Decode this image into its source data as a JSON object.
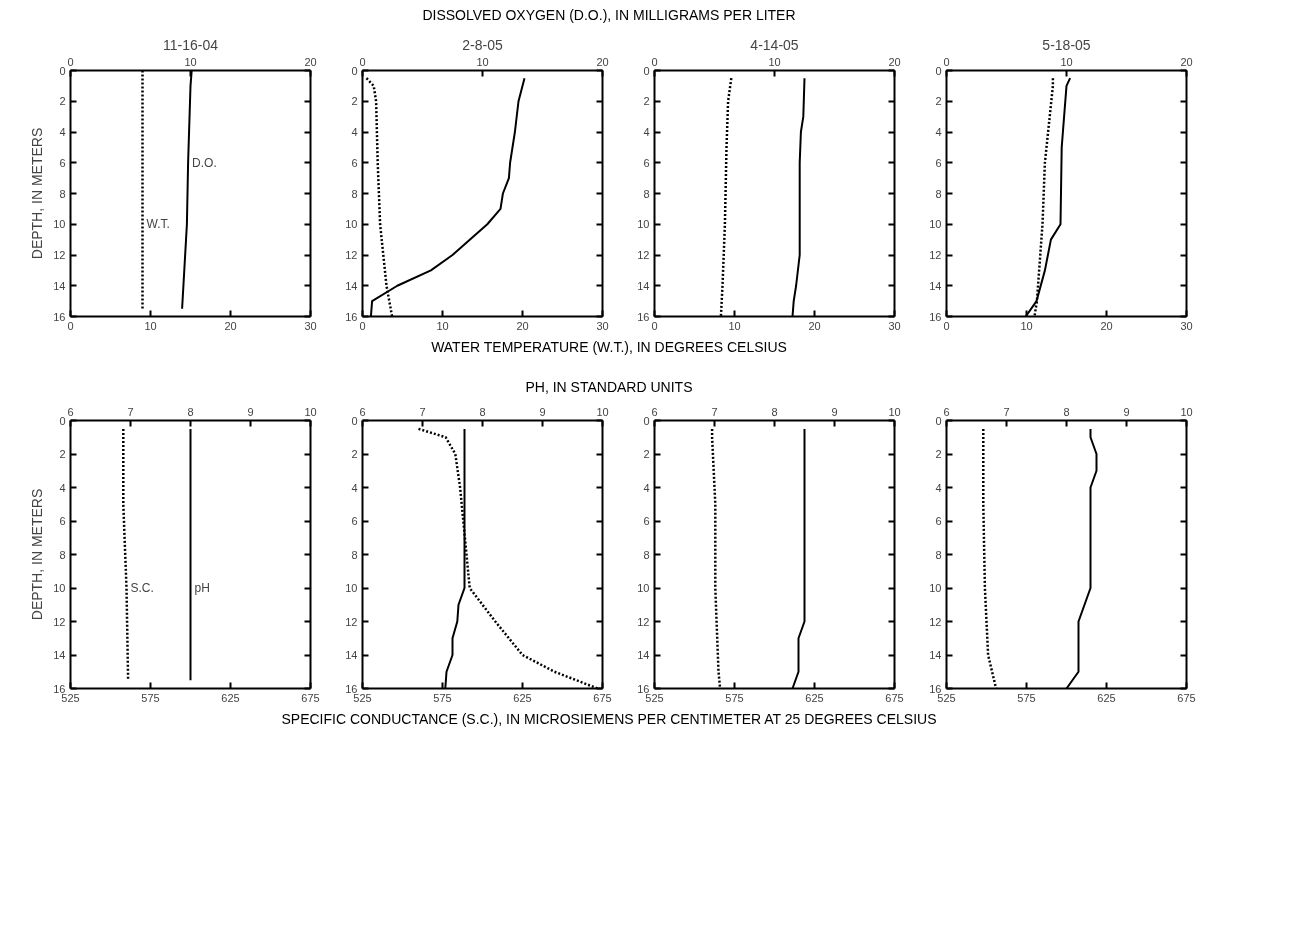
{
  "chart_data": [
    {
      "type": "line",
      "title": "11-16-04",
      "ylabel": "DEPTH, IN METERS",
      "xlim": [
        0,
        30
      ],
      "xticks": [
        0,
        10,
        20,
        30
      ],
      "x2lim": [
        0,
        20
      ],
      "x2ticks": [
        0,
        10,
        20
      ],
      "ylim": [
        16,
        0
      ],
      "yticks": [
        0,
        2,
        4,
        6,
        8,
        10,
        12,
        14,
        16
      ],
      "grid": false,
      "series": [
        {
          "name": "W.T.",
          "color": "#000000",
          "line_style": "dotted",
          "x": [
            9.0,
            9.0,
            9.0,
            9.0
          ],
          "values": [
            0,
            5,
            10,
            15.5
          ]
        },
        {
          "name": "D.O.",
          "axis": "x2",
          "color": "#000000",
          "line_style": "solid",
          "x": [
            10.1,
            10.0,
            9.8,
            9.7,
            9.3
          ],
          "values": [
            0,
            1,
            6,
            10,
            15.5
          ]
        }
      ]
    },
    {
      "type": "line",
      "title": "2-8-05",
      "x2label": "DISSOLVED OXYGEN (D.O.), IN MILLIGRAMS PER LITER",
      "xlabel": "WATER TEMPERATURE (W.T.), IN DEGREES CELSIUS",
      "xlim": [
        0,
        30
      ],
      "xticks": [
        0,
        10,
        20,
        30
      ],
      "x2lim": [
        0,
        20
      ],
      "x2ticks": [
        0,
        10,
        20
      ],
      "ylim": [
        16,
        0
      ],
      "yticks": [
        0,
        2,
        4,
        6,
        8,
        10,
        12,
        14,
        16
      ],
      "grid": false,
      "series": [
        {
          "color": "#000000",
          "line_style": "dotted",
          "x": [
            0.5,
            1.4,
            1.7,
            1.9,
            2.2,
            3.0,
            3.7
          ],
          "values": [
            0.5,
            1,
            2,
            6,
            10,
            14,
            16
          ]
        },
        {
          "axis": "x2",
          "color": "#000000",
          "line_style": "solid",
          "x": [
            13.5,
            13.0,
            12.7,
            12.3,
            12.2,
            11.7,
            11.5,
            10.4,
            7.5,
            5.7,
            2.9,
            0.8,
            0.7
          ],
          "values": [
            0.5,
            2,
            4,
            6,
            7,
            8,
            9,
            10,
            12,
            13,
            14,
            15,
            16
          ]
        }
      ]
    },
    {
      "type": "line",
      "title": "4-14-05",
      "xlim": [
        0,
        30
      ],
      "xticks": [
        0,
        10,
        20,
        30
      ],
      "x2lim": [
        0,
        20
      ],
      "x2ticks": [
        0,
        10,
        20
      ],
      "ylim": [
        16,
        0
      ],
      "yticks": [
        0,
        2,
        4,
        6,
        8,
        10,
        12,
        14,
        16
      ],
      "grid": false,
      "series": [
        {
          "color": "#000000",
          "line_style": "dotted",
          "x": [
            9.6,
            9.2,
            9.0,
            8.8,
            8.5,
            8.3
          ],
          "values": [
            0.5,
            2,
            5,
            10,
            14,
            16
          ]
        },
        {
          "axis": "x2",
          "color": "#000000",
          "line_style": "solid",
          "x": [
            12.5,
            12.4,
            12.2,
            12.1,
            12.1,
            11.8,
            11.6,
            11.5
          ],
          "values": [
            0.5,
            3,
            4,
            6,
            12,
            14,
            15,
            16
          ]
        }
      ]
    },
    {
      "type": "line",
      "title": "5-18-05",
      "xlim": [
        0,
        30
      ],
      "xticks": [
        0,
        10,
        20,
        30
      ],
      "x2lim": [
        0,
        20
      ],
      "x2ticks": [
        0,
        10,
        20
      ],
      "ylim": [
        16,
        0
      ],
      "yticks": [
        0,
        2,
        4,
        6,
        8,
        10,
        12,
        14,
        16
      ],
      "grid": false,
      "series": [
        {
          "color": "#000000",
          "line_style": "dotted",
          "x": [
            13.3,
            13.3,
            12.7,
            12.3,
            12.0,
            11.3,
            11.0
          ],
          "values": [
            0.5,
            1,
            4,
            6,
            10,
            15,
            16
          ]
        },
        {
          "axis": "x2",
          "color": "#000000",
          "line_style": "solid",
          "x": [
            10.3,
            10.0,
            9.7,
            9.6,
            9.5,
            8.7,
            8.2,
            7.5,
            6.6
          ],
          "values": [
            0.5,
            1,
            4,
            5,
            10,
            11,
            13,
            15,
            16
          ]
        }
      ]
    },
    {
      "type": "line",
      "ylabel": "DEPTH, IN METERS",
      "xlim": [
        525,
        675
      ],
      "xticks": [
        525,
        575,
        625,
        675
      ],
      "x2lim": [
        6,
        10
      ],
      "x2ticks": [
        6,
        7,
        8,
        9,
        10
      ],
      "ylim": [
        16,
        0
      ],
      "yticks": [
        0,
        2,
        4,
        6,
        8,
        10,
        12,
        14,
        16
      ],
      "grid": false,
      "series": [
        {
          "name": "S.C.",
          "color": "#000000",
          "line_style": "dotted",
          "x": [
            558,
            558,
            560,
            561
          ],
          "values": [
            0.5,
            5,
            10,
            15.5
          ]
        },
        {
          "name": "pH",
          "axis": "x2",
          "color": "#000000",
          "line_style": "solid",
          "x": [
            8.0,
            8.0,
            8.0,
            8.0
          ],
          "values": [
            0.5,
            5,
            10,
            15.5
          ]
        }
      ]
    },
    {
      "type": "line",
      "x2label": "PH, IN STANDARD UNITS",
      "xlabel": "SPECIFIC CONDUCTANCE (S.C.), IN MICROSIEMENS PER CENTIMETER AT 25 DEGREES CELSIUS",
      "xlim": [
        525,
        675
      ],
      "xticks": [
        525,
        575,
        625,
        675
      ],
      "x2lim": [
        6,
        10
      ],
      "x2ticks": [
        6,
        7,
        8,
        9,
        10
      ],
      "ylim": [
        16,
        0
      ],
      "yticks": [
        0,
        2,
        4,
        6,
        8,
        10,
        12,
        14,
        16
      ],
      "grid": false,
      "series": [
        {
          "color": "#000000",
          "line_style": "dotted",
          "x": [
            560,
            577,
            583,
            586,
            589,
            591,
            592,
            608,
            625,
            645,
            672
          ],
          "values": [
            0.5,
            1,
            2,
            4,
            7,
            9,
            10,
            12,
            14,
            15,
            16
          ]
        },
        {
          "axis": "x2",
          "color": "#000000",
          "line_style": "solid",
          "x": [
            7.7,
            7.7,
            7.6,
            7.58,
            7.5,
            7.5,
            7.4,
            7.38
          ],
          "values": [
            0.5,
            10,
            11,
            12,
            13,
            14,
            15,
            16
          ]
        }
      ]
    },
    {
      "type": "line",
      "xlim": [
        525,
        675
      ],
      "xticks": [
        525,
        575,
        625,
        675
      ],
      "x2lim": [
        6,
        10
      ],
      "x2ticks": [
        6,
        7,
        8,
        9,
        10
      ],
      "ylim": [
        16,
        0
      ],
      "yticks": [
        0,
        2,
        4,
        6,
        8,
        10,
        12,
        14,
        16
      ],
      "grid": false,
      "series": [
        {
          "color": "#000000",
          "line_style": "dotted",
          "x": [
            561,
            561,
            563,
            563,
            565,
            566
          ],
          "values": [
            0.5,
            1,
            5,
            10,
            15,
            16
          ]
        },
        {
          "axis": "x2",
          "color": "#000000",
          "line_style": "solid",
          "x": [
            8.5,
            8.5,
            8.4,
            8.4,
            8.3
          ],
          "values": [
            0.5,
            12,
            13,
            15,
            16
          ]
        }
      ]
    },
    {
      "type": "line",
      "xlim": [
        525,
        675
      ],
      "xticks": [
        525,
        575,
        625,
        675
      ],
      "x2lim": [
        6,
        10
      ],
      "x2ticks": [
        6,
        7,
        8,
        9,
        10
      ],
      "ylim": [
        16,
        0
      ],
      "yticks": [
        0,
        2,
        4,
        6,
        8,
        10,
        12,
        14,
        16
      ],
      "grid": false,
      "series": [
        {
          "color": "#000000",
          "line_style": "dotted",
          "x": [
            548,
            548,
            549,
            551,
            556
          ],
          "values": [
            0.5,
            5,
            10,
            14,
            16
          ]
        },
        {
          "axis": "x2",
          "color": "#000000",
          "line_style": "solid",
          "x": [
            8.4,
            8.4,
            8.5,
            8.5,
            8.4,
            8.4,
            8.2,
            8.2,
            8.0
          ],
          "values": [
            0.5,
            1,
            2,
            3,
            4,
            10,
            12,
            15,
            16
          ]
        }
      ]
    }
  ]
}
